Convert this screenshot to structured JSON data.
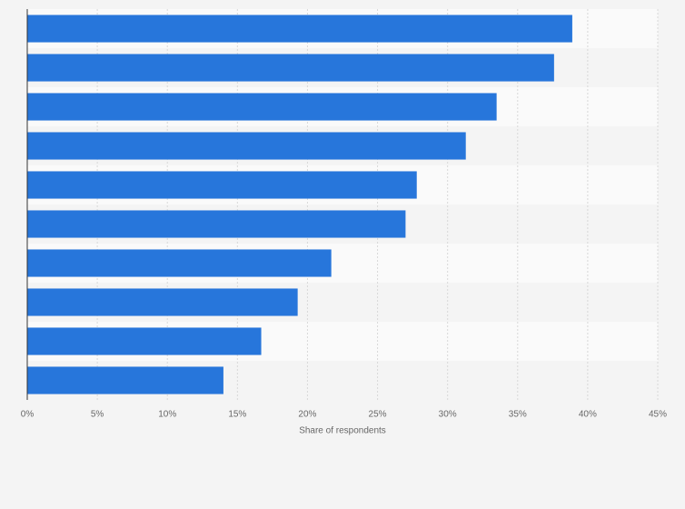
{
  "chart_data": {
    "type": "bar",
    "orientation": "horizontal",
    "categories": [
      null,
      null,
      null,
      null,
      null,
      null,
      null,
      null,
      null,
      null
    ],
    "values": [
      38.9,
      37.6,
      33.5,
      31.3,
      27.8,
      27.0,
      21.7,
      19.3,
      16.7,
      14.0
    ],
    "color": "#2776db",
    "xlabel": "Share of respondents",
    "xlim": [
      0,
      45
    ],
    "xticks": [
      {
        "value": 0,
        "label": "0%"
      },
      {
        "value": 5,
        "label": "5%"
      },
      {
        "value": 10,
        "label": "10%"
      },
      {
        "value": 15,
        "label": "15%"
      },
      {
        "value": 20,
        "label": "20%"
      },
      {
        "value": 25,
        "label": "25%"
      },
      {
        "value": 30,
        "label": "30%"
      },
      {
        "value": 35,
        "label": "35%"
      },
      {
        "value": 40,
        "label": "40%"
      },
      {
        "value": 45,
        "label": "45%"
      }
    ],
    "grid": true
  }
}
